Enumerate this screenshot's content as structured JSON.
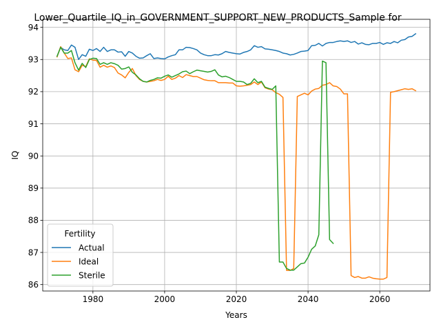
{
  "chart_data": {
    "type": "line",
    "title": "Lower_Quartile_IQ_in_GOVERNMENT_SUPPORT_NEW_PRODUCTS_Sample for",
    "xlabel": "Years",
    "ylabel": "IQ",
    "xlim": [
      1966,
      2074
    ],
    "ylim": [
      85.8,
      94.25
    ],
    "x_ticks": [
      1980,
      2000,
      2020,
      2040,
      2060
    ],
    "y_ticks": [
      86,
      87,
      88,
      89,
      90,
      91,
      92,
      93,
      94
    ],
    "grid": true,
    "legend": {
      "title": "Fertility",
      "placement": "lower-left"
    },
    "series": [
      {
        "name": "Actual",
        "color": "#1f77b4",
        "points": [
          [
            1970,
            93.1
          ],
          [
            1971,
            93.38
          ],
          [
            1972,
            93.3
          ],
          [
            1973,
            93.28
          ],
          [
            1974,
            93.45
          ],
          [
            1975,
            93.38
          ],
          [
            1976,
            93.0
          ],
          [
            1977,
            93.15
          ],
          [
            1978,
            93.1
          ],
          [
            1979,
            93.32
          ],
          [
            1980,
            93.28
          ],
          [
            1981,
            93.34
          ],
          [
            1982,
            93.25
          ],
          [
            1983,
            93.38
          ],
          [
            1984,
            93.25
          ],
          [
            1985,
            93.3
          ],
          [
            1986,
            93.3
          ],
          [
            1987,
            93.23
          ],
          [
            1988,
            93.24
          ],
          [
            1989,
            93.1
          ],
          [
            1990,
            93.25
          ],
          [
            1991,
            93.2
          ],
          [
            1992,
            93.1
          ],
          [
            1993,
            93.04
          ],
          [
            1994,
            93.05
          ],
          [
            1995,
            93.12
          ],
          [
            1996,
            93.18
          ],
          [
            1997,
            93.03
          ],
          [
            1998,
            93.05
          ],
          [
            1999,
            93.03
          ],
          [
            2000,
            93.02
          ],
          [
            2001,
            93.08
          ],
          [
            2002,
            93.12
          ],
          [
            2003,
            93.15
          ],
          [
            2004,
            93.3
          ],
          [
            2005,
            93.3
          ],
          [
            2006,
            93.38
          ],
          [
            2007,
            93.37
          ],
          [
            2008,
            93.34
          ],
          [
            2009,
            93.3
          ],
          [
            2010,
            93.2
          ],
          [
            2011,
            93.15
          ],
          [
            2012,
            93.12
          ],
          [
            2013,
            93.12
          ],
          [
            2014,
            93.15
          ],
          [
            2015,
            93.14
          ],
          [
            2016,
            93.18
          ],
          [
            2017,
            93.25
          ],
          [
            2018,
            93.22
          ],
          [
            2019,
            93.2
          ],
          [
            2020,
            93.18
          ],
          [
            2021,
            93.17
          ],
          [
            2022,
            93.22
          ],
          [
            2023,
            93.25
          ],
          [
            2024,
            93.3
          ],
          [
            2025,
            93.43
          ],
          [
            2026,
            93.38
          ],
          [
            2027,
            93.4
          ],
          [
            2028,
            93.33
          ],
          [
            2029,
            93.32
          ],
          [
            2030,
            93.3
          ],
          [
            2031,
            93.28
          ],
          [
            2032,
            93.25
          ],
          [
            2033,
            93.2
          ],
          [
            2034,
            93.18
          ],
          [
            2035,
            93.14
          ],
          [
            2036,
            93.16
          ],
          [
            2037,
            93.2
          ],
          [
            2038,
            93.25
          ],
          [
            2039,
            93.26
          ],
          [
            2040,
            93.28
          ],
          [
            2041,
            93.43
          ],
          [
            2042,
            93.44
          ],
          [
            2043,
            93.5
          ],
          [
            2044,
            93.42
          ],
          [
            2045,
            93.5
          ],
          [
            2046,
            93.53
          ],
          [
            2047,
            93.53
          ],
          [
            2048,
            93.56
          ],
          [
            2049,
            93.58
          ],
          [
            2050,
            93.56
          ],
          [
            2051,
            93.58
          ],
          [
            2052,
            93.53
          ],
          [
            2053,
            93.56
          ],
          [
            2054,
            93.48
          ],
          [
            2055,
            93.52
          ],
          [
            2056,
            93.47
          ],
          [
            2057,
            93.46
          ],
          [
            2058,
            93.5
          ],
          [
            2059,
            93.5
          ],
          [
            2060,
            93.53
          ],
          [
            2061,
            93.47
          ],
          [
            2062,
            93.52
          ],
          [
            2063,
            93.5
          ],
          [
            2064,
            93.56
          ],
          [
            2065,
            93.52
          ],
          [
            2066,
            93.6
          ],
          [
            2067,
            93.62
          ],
          [
            2068,
            93.7
          ],
          [
            2069,
            93.72
          ],
          [
            2070,
            93.8
          ]
        ]
      },
      {
        "name": "Ideal",
        "color": "#ff7f0e",
        "points": [
          [
            1970,
            93.08
          ],
          [
            1971,
            93.4
          ],
          [
            1972,
            93.2
          ],
          [
            1973,
            93.03
          ],
          [
            1974,
            93.05
          ],
          [
            1975,
            92.68
          ],
          [
            1976,
            92.62
          ],
          [
            1977,
            92.82
          ],
          [
            1978,
            92.78
          ],
          [
            1979,
            93.02
          ],
          [
            1980,
            92.98
          ],
          [
            1981,
            92.97
          ],
          [
            1982,
            92.76
          ],
          [
            1983,
            92.82
          ],
          [
            1984,
            92.76
          ],
          [
            1985,
            92.8
          ],
          [
            1986,
            92.75
          ],
          [
            1987,
            92.58
          ],
          [
            1988,
            92.52
          ],
          [
            1989,
            92.43
          ],
          [
            1990,
            92.6
          ],
          [
            1991,
            92.72
          ],
          [
            1992,
            92.5
          ],
          [
            1993,
            92.38
          ],
          [
            1994,
            92.32
          ],
          [
            1995,
            92.3
          ],
          [
            1996,
            92.32
          ],
          [
            1997,
            92.34
          ],
          [
            1998,
            92.38
          ],
          [
            1999,
            92.35
          ],
          [
            2000,
            92.38
          ],
          [
            2001,
            92.48
          ],
          [
            2002,
            92.38
          ],
          [
            2003,
            92.42
          ],
          [
            2004,
            92.5
          ],
          [
            2005,
            92.44
          ],
          [
            2006,
            92.53
          ],
          [
            2007,
            92.5
          ],
          [
            2008,
            92.47
          ],
          [
            2009,
            92.47
          ],
          [
            2010,
            92.42
          ],
          [
            2011,
            92.37
          ],
          [
            2012,
            92.35
          ],
          [
            2013,
            92.34
          ],
          [
            2014,
            92.34
          ],
          [
            2015,
            92.28
          ],
          [
            2016,
            92.28
          ],
          [
            2017,
            92.28
          ],
          [
            2018,
            92.27
          ],
          [
            2019,
            92.27
          ],
          [
            2020,
            92.18
          ],
          [
            2021,
            92.17
          ],
          [
            2022,
            92.18
          ],
          [
            2023,
            92.2
          ],
          [
            2024,
            92.22
          ],
          [
            2025,
            92.3
          ],
          [
            2026,
            92.22
          ],
          [
            2027,
            92.3
          ],
          [
            2028,
            92.12
          ],
          [
            2029,
            92.08
          ],
          [
            2030,
            92.06
          ],
          [
            2031,
            91.97
          ],
          [
            2032,
            91.92
          ],
          [
            2033,
            91.82
          ],
          [
            2034,
            86.44
          ],
          [
            2035,
            86.44
          ],
          [
            2036,
            86.5
          ],
          [
            2037,
            91.85
          ],
          [
            2038,
            91.9
          ],
          [
            2039,
            91.95
          ],
          [
            2040,
            91.9
          ],
          [
            2041,
            92.02
          ],
          [
            2042,
            92.08
          ],
          [
            2043,
            92.1
          ],
          [
            2044,
            92.2
          ],
          [
            2045,
            92.22
          ],
          [
            2046,
            92.28
          ],
          [
            2047,
            92.18
          ],
          [
            2048,
            92.16
          ],
          [
            2049,
            92.08
          ],
          [
            2050,
            91.93
          ],
          [
            2051,
            91.93
          ],
          [
            2052,
            86.28
          ],
          [
            2053,
            86.22
          ],
          [
            2054,
            86.25
          ],
          [
            2055,
            86.2
          ],
          [
            2056,
            86.2
          ],
          [
            2057,
            86.24
          ],
          [
            2058,
            86.2
          ],
          [
            2059,
            86.18
          ],
          [
            2060,
            86.17
          ],
          [
            2061,
            86.17
          ],
          [
            2062,
            86.22
          ],
          [
            2063,
            91.98
          ],
          [
            2064,
            92.0
          ],
          [
            2065,
            92.03
          ],
          [
            2066,
            92.06
          ],
          [
            2067,
            92.09
          ],
          [
            2068,
            92.07
          ],
          [
            2069,
            92.09
          ],
          [
            2070,
            92.03
          ]
        ]
      },
      {
        "name": "Sterile",
        "color": "#2ca02c",
        "points": [
          [
            1970,
            93.1
          ],
          [
            1971,
            93.38
          ],
          [
            1972,
            93.2
          ],
          [
            1973,
            93.2
          ],
          [
            1974,
            93.28
          ],
          [
            1975,
            92.9
          ],
          [
            1976,
            92.67
          ],
          [
            1977,
            92.88
          ],
          [
            1978,
            92.75
          ],
          [
            1979,
            93.0
          ],
          [
            1980,
            93.04
          ],
          [
            1981,
            93.03
          ],
          [
            1982,
            92.85
          ],
          [
            1983,
            92.9
          ],
          [
            1984,
            92.85
          ],
          [
            1985,
            92.9
          ],
          [
            1986,
            92.87
          ],
          [
            1987,
            92.82
          ],
          [
            1988,
            92.7
          ],
          [
            1989,
            92.72
          ],
          [
            1990,
            92.77
          ],
          [
            1991,
            92.6
          ],
          [
            1992,
            92.52
          ],
          [
            1993,
            92.4
          ],
          [
            1994,
            92.32
          ],
          [
            1995,
            92.3
          ],
          [
            1996,
            92.35
          ],
          [
            1997,
            92.38
          ],
          [
            1998,
            92.43
          ],
          [
            1999,
            92.42
          ],
          [
            2000,
            92.48
          ],
          [
            2001,
            92.52
          ],
          [
            2002,
            92.45
          ],
          [
            2003,
            92.5
          ],
          [
            2004,
            92.55
          ],
          [
            2005,
            92.62
          ],
          [
            2006,
            92.64
          ],
          [
            2007,
            92.56
          ],
          [
            2008,
            92.62
          ],
          [
            2009,
            92.67
          ],
          [
            2010,
            92.65
          ],
          [
            2011,
            92.63
          ],
          [
            2012,
            92.61
          ],
          [
            2013,
            92.63
          ],
          [
            2014,
            92.68
          ],
          [
            2015,
            92.52
          ],
          [
            2016,
            92.46
          ],
          [
            2017,
            92.48
          ],
          [
            2018,
            92.44
          ],
          [
            2019,
            92.38
          ],
          [
            2020,
            92.32
          ],
          [
            2021,
            92.32
          ],
          [
            2022,
            92.3
          ],
          [
            2023,
            92.22
          ],
          [
            2024,
            92.26
          ],
          [
            2025,
            92.4
          ],
          [
            2026,
            92.28
          ],
          [
            2027,
            92.32
          ],
          [
            2028,
            92.14
          ],
          [
            2029,
            92.1
          ],
          [
            2030,
            92.07
          ],
          [
            2031,
            92.18
          ],
          [
            2032,
            86.7
          ],
          [
            2033,
            86.7
          ],
          [
            2034,
            86.5
          ],
          [
            2035,
            86.45
          ],
          [
            2036,
            86.45
          ],
          [
            2037,
            86.55
          ],
          [
            2038,
            86.65
          ],
          [
            2039,
            86.67
          ],
          [
            2040,
            86.85
          ],
          [
            2041,
            87.1
          ],
          [
            2042,
            87.2
          ],
          [
            2043,
            87.55
          ],
          [
            2044,
            92.95
          ],
          [
            2045,
            92.9
          ],
          [
            2046,
            87.4
          ],
          [
            2047,
            87.28
          ]
        ]
      }
    ]
  }
}
